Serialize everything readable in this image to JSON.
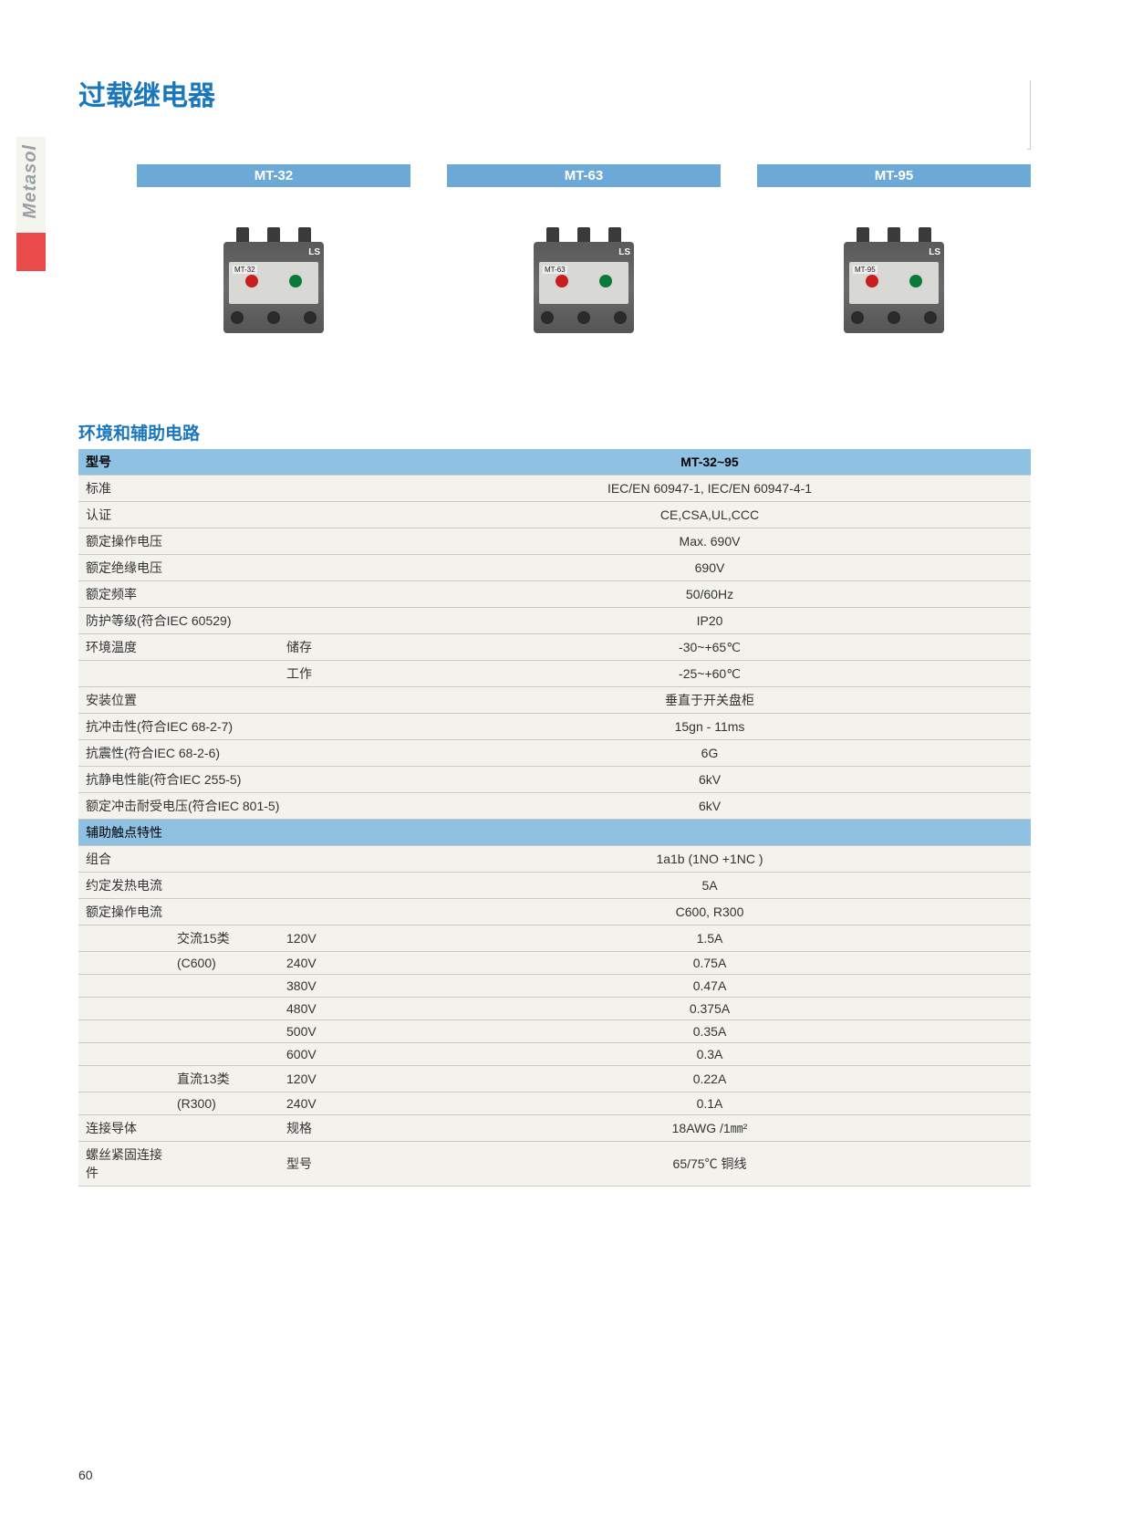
{
  "brand_side": "Metasol",
  "page_title": "过载继电器",
  "page_number": "60",
  "products": [
    {
      "label": "MT-32",
      "tag": "MT-32"
    },
    {
      "label": "MT-63",
      "tag": "MT-63"
    },
    {
      "label": "MT-95",
      "tag": "MT-95"
    }
  ],
  "section_title": "环境和辅助电路",
  "colors": {
    "accent_blue": "#1a77bb",
    "header_blue": "#8fc1e3",
    "tab_blue": "#6ca9d6",
    "side_red": "#e94b4b",
    "side_gray": "#f5f5f0",
    "table_bg": "#f3f2ed",
    "border": "#c9c8c2"
  },
  "table": {
    "header_left": "型号",
    "header_right": "MT-32~95",
    "rows": [
      {
        "a": "标准",
        "b": "",
        "c": "",
        "d": "IEC/EN 60947-1, IEC/EN 60947-4-1"
      },
      {
        "a": "认证",
        "b": "",
        "c": "",
        "d": "CE,CSA,UL,CCC"
      },
      {
        "a": "额定操作电压",
        "b": "",
        "c": "",
        "d": "Max. 690V"
      },
      {
        "a": "额定绝缘电压",
        "b": "",
        "c": "",
        "d": "690V"
      },
      {
        "a": "额定频率",
        "b": "",
        "c": "",
        "d": "50/60Hz"
      },
      {
        "a": "防护等级(符合IEC 60529)",
        "b": "",
        "c": "",
        "d": "IP20"
      },
      {
        "a": "环境温度",
        "b": "",
        "c": "储存",
        "d": "-30~+65℃"
      },
      {
        "a": "",
        "b": "",
        "c": "工作",
        "d": "-25~+60℃"
      },
      {
        "a": "安装位置",
        "b": "",
        "c": "",
        "d": "垂直于开关盘柜"
      },
      {
        "a": "抗冲击性(符合IEC 68-2-7)",
        "b": "",
        "c": "",
        "d": "15gn - 11ms"
      },
      {
        "a": "抗震性(符合IEC 68-2-6)",
        "b": "",
        "c": "",
        "d": "6G"
      },
      {
        "a": "抗静电性能(符合IEC 255-5)",
        "b": "",
        "c": "",
        "d": "6kV"
      },
      {
        "a": "额定冲击耐受电压(符合IEC 801-5)",
        "b": "",
        "c": "",
        "d": "6kV"
      }
    ],
    "sub_header": "辅助触点特性",
    "rows2": [
      {
        "a": "组合",
        "b": "",
        "c": "",
        "d": "1a1b (1NO +1NC )"
      },
      {
        "a": "约定发热电流",
        "b": "",
        "c": "",
        "d": "5A"
      },
      {
        "a": "额定操作电流",
        "b": "",
        "c": "",
        "d": "C600, R300"
      },
      {
        "a": "",
        "b": "交流15类",
        "c": "120V",
        "d": "1.5A"
      },
      {
        "a": "",
        "b": "(C600)",
        "c": "240V",
        "d": "0.75A"
      },
      {
        "a": "",
        "b": "",
        "c": "380V",
        "d": "0.47A"
      },
      {
        "a": "",
        "b": "",
        "c": "480V",
        "d": "0.375A"
      },
      {
        "a": "",
        "b": "",
        "c": "500V",
        "d": "0.35A"
      },
      {
        "a": "",
        "b": "",
        "c": "600V",
        "d": "0.3A"
      },
      {
        "a": "",
        "b": "直流13类",
        "c": "120V",
        "d": "0.22A"
      },
      {
        "a": "",
        "b": "(R300)",
        "c": "240V",
        "d": "0.1A"
      },
      {
        "a": "连接导体",
        "b": "",
        "c": "规格",
        "d": "18AWG /1㎜²"
      },
      {
        "a": "螺丝紧固连接件",
        "b": "",
        "c": "型号",
        "d": "65/75℃ 铜线"
      }
    ]
  }
}
